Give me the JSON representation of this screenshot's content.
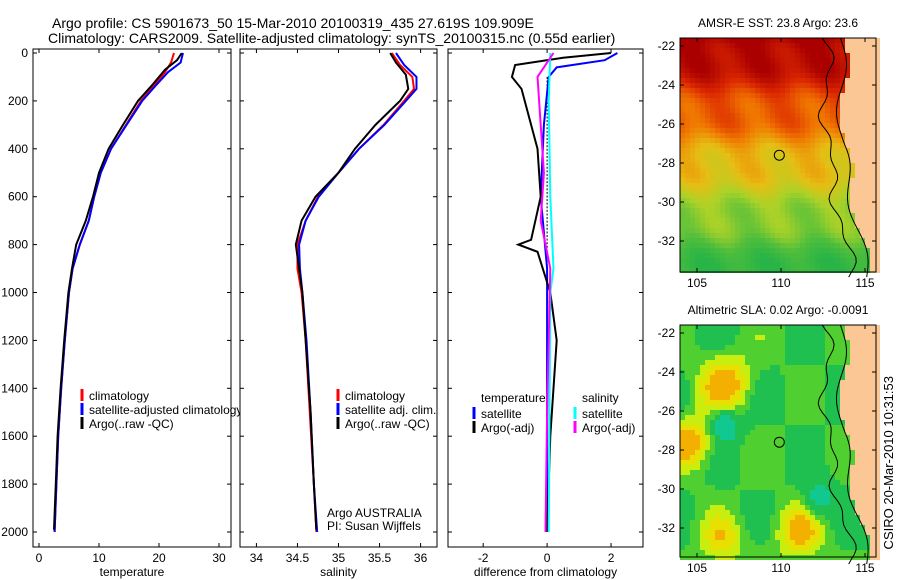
{
  "header": {
    "line1": "Argo profile: CS 5901673_50 15-Mar-2010 20100319_435 27.619S 109.909E",
    "line2": "Climatology: CARS2009. Satellite-adjusted climatology: synTS_20100315.nc (0.55d earlier)"
  },
  "credit": "CSIRO 20-Mar-2010 10:31:53",
  "colors": {
    "climatology": "#ff0000",
    "satellite": "#0000ff",
    "argo": "#000000",
    "sal_satellite": "#00ffff",
    "sal_argo": "#ff00ff",
    "land": "#fbc895"
  },
  "chart_data": [
    {
      "type": "line",
      "xlabel": "temperature",
      "ylabel": "",
      "xlim": [
        -1,
        32
      ],
      "ylim": [
        2000,
        0
      ],
      "xticks": [
        "0",
        "10",
        "20",
        "30"
      ],
      "xtick_values": [
        0,
        10,
        20,
        30
      ],
      "yticks": [
        "0",
        "200",
        "400",
        "600",
        "800",
        "1000",
        "1200",
        "1400",
        "1600",
        "1800",
        "2000"
      ],
      "legend": [
        "climatology",
        "satellite-adjusted climatology",
        "Argo(..raw -QC)"
      ],
      "series": [
        {
          "name": "climatology",
          "color": "#ff0000",
          "points": [
            [
              22.5,
              0
            ],
            [
              22,
              40
            ],
            [
              21,
              80
            ],
            [
              19,
              140
            ],
            [
              17,
              200
            ],
            [
              14.5,
              300
            ],
            [
              12,
              400
            ],
            [
              10.3,
              500
            ],
            [
              9.2,
              600
            ],
            [
              8.3,
              700
            ],
            [
              6.8,
              800
            ],
            [
              5.6,
              900
            ],
            [
              5.0,
              1000
            ],
            [
              4.3,
              1200
            ],
            [
              3.7,
              1400
            ],
            [
              3.2,
              1600
            ],
            [
              2.9,
              1800
            ],
            [
              2.6,
              2000
            ]
          ]
        },
        {
          "name": "satellite-adjusted climatology",
          "color": "#0000ff",
          "points": [
            [
              24,
              0
            ],
            [
              23.6,
              40
            ],
            [
              21.5,
              80
            ],
            [
              19.3,
              140
            ],
            [
              17.2,
              200
            ],
            [
              14.6,
              300
            ],
            [
              12,
              400
            ],
            [
              10.3,
              500
            ],
            [
              9.2,
              600
            ],
            [
              8.3,
              700
            ],
            [
              6.8,
              800
            ],
            [
              5.6,
              900
            ],
            [
              5.0,
              1000
            ],
            [
              4.3,
              1200
            ],
            [
              3.7,
              1400
            ],
            [
              3.2,
              1600
            ],
            [
              2.9,
              1800
            ],
            [
              2.6,
              2000
            ]
          ]
        },
        {
          "name": "Argo(..raw -QC)",
          "color": "#000000",
          "points": [
            [
              23.8,
              0
            ],
            [
              23,
              30
            ],
            [
              21,
              70
            ],
            [
              19,
              130
            ],
            [
              16.5,
              200
            ],
            [
              14,
              300
            ],
            [
              11.6,
              400
            ],
            [
              10,
              500
            ],
            [
              9,
              600
            ],
            [
              7.8,
              700
            ],
            [
              6.2,
              800
            ],
            [
              5.5,
              900
            ],
            [
              4.9,
              1000
            ],
            [
              4.2,
              1200
            ],
            [
              3.6,
              1400
            ],
            [
              3.1,
              1600
            ],
            [
              2.8,
              1800
            ],
            [
              2.5,
              1990
            ]
          ]
        }
      ],
      "annotation": []
    },
    {
      "type": "line",
      "xlabel": "salinity",
      "ylabel": "",
      "xlim": [
        33.8,
        36.2
      ],
      "ylim": [
        2000,
        0
      ],
      "xticks": [
        "34",
        "34.5",
        "35",
        "35.5",
        "36"
      ],
      "xtick_values": [
        34,
        34.5,
        35,
        35.5,
        36
      ],
      "legend": [
        "climatology",
        "satellite adj. clim.",
        "Argo(..raw -QC)"
      ],
      "series": [
        {
          "name": "climatology",
          "color": "#ff0000",
          "points": [
            [
              35.65,
              0
            ],
            [
              35.75,
              50
            ],
            [
              35.9,
              100
            ],
            [
              35.92,
              150
            ],
            [
              35.8,
              200
            ],
            [
              35.55,
              300
            ],
            [
              35.25,
              400
            ],
            [
              35.0,
              500
            ],
            [
              34.75,
              600
            ],
            [
              34.6,
              700
            ],
            [
              34.5,
              800
            ],
            [
              34.5,
              900
            ],
            [
              34.55,
              1000
            ],
            [
              34.6,
              1200
            ],
            [
              34.65,
              1500
            ],
            [
              34.7,
              1800
            ],
            [
              34.73,
              2000
            ]
          ]
        },
        {
          "name": "satellite adj. clim.",
          "color": "#0000ff",
          "points": [
            [
              35.7,
              0
            ],
            [
              35.8,
              50
            ],
            [
              35.95,
              100
            ],
            [
              35.95,
              150
            ],
            [
              35.82,
              200
            ],
            [
              35.56,
              300
            ],
            [
              35.25,
              400
            ],
            [
              35.0,
              500
            ],
            [
              34.76,
              600
            ],
            [
              34.6,
              700
            ],
            [
              34.52,
              800
            ],
            [
              34.53,
              900
            ],
            [
              34.56,
              1000
            ],
            [
              34.61,
              1200
            ],
            [
              34.66,
              1500
            ],
            [
              34.7,
              1800
            ],
            [
              34.74,
              2000
            ]
          ]
        },
        {
          "name": "Argo(..raw -QC)",
          "color": "#000000",
          "points": [
            [
              35.63,
              0
            ],
            [
              35.7,
              40
            ],
            [
              35.82,
              90
            ],
            [
              35.85,
              150
            ],
            [
              35.75,
              200
            ],
            [
              35.45,
              300
            ],
            [
              35.2,
              400
            ],
            [
              35.0,
              500
            ],
            [
              34.72,
              600
            ],
            [
              34.55,
              700
            ],
            [
              34.48,
              800
            ],
            [
              34.52,
              900
            ],
            [
              34.56,
              1000
            ],
            [
              34.6,
              1200
            ],
            [
              34.66,
              1500
            ],
            [
              34.7,
              1800
            ],
            [
              34.73,
              1990
            ]
          ]
        }
      ],
      "annotation": [
        "Argo AUSTRALIA",
        "PI: Susan Wijffels"
      ]
    },
    {
      "type": "line",
      "xlabel": "difference from climatology",
      "ylabel": "",
      "xlim": [
        -3.1,
        3.0
      ],
      "ylim": [
        2000,
        0
      ],
      "xticks": [
        "-2",
        "0",
        "2"
      ],
      "xtick_values": [
        -2,
        0,
        2
      ],
      "legend_headers": [
        "temperature",
        "salinity"
      ],
      "legend": [
        "satellite",
        "Argo(-adj)",
        "satellite",
        "Argo(-adj)"
      ],
      "series": [
        {
          "name": "temperature satellite",
          "color": "#0000ff",
          "points": [
            [
              2.2,
              0
            ],
            [
              1.8,
              30
            ],
            [
              0.3,
              60
            ],
            [
              0.05,
              100
            ],
            [
              -0.1,
              300
            ],
            [
              -0.2,
              600
            ],
            [
              0,
              900
            ],
            [
              0,
              2000
            ]
          ]
        },
        {
          "name": "temperature Argo(-adj)",
          "color": "#000000",
          "points": [
            [
              2.0,
              0
            ],
            [
              0.5,
              20
            ],
            [
              -1.0,
              50
            ],
            [
              -1.1,
              100
            ],
            [
              -0.8,
              150
            ],
            [
              -0.6,
              250
            ],
            [
              -0.3,
              400
            ],
            [
              -0.2,
              600
            ],
            [
              -0.5,
              780
            ],
            [
              -0.9,
              800
            ],
            [
              -0.3,
              830
            ],
            [
              0.1,
              1000
            ],
            [
              0.3,
              1200
            ],
            [
              0.2,
              1400
            ],
            [
              0.1,
              1600
            ],
            [
              0,
              2000
            ]
          ]
        },
        {
          "name": "salinity satellite",
          "color": "#00ffff",
          "points": [
            [
              0.1,
              0
            ],
            [
              0.05,
              200
            ],
            [
              0.1,
              600
            ],
            [
              0.2,
              900
            ],
            [
              0.1,
              1000
            ],
            [
              0.05,
              2000
            ]
          ]
        },
        {
          "name": "salinity Argo(-adj)",
          "color": "#ff00ff",
          "points": [
            [
              0.2,
              0
            ],
            [
              -0.3,
              100
            ],
            [
              -0.2,
              300
            ],
            [
              -0.1,
              500
            ],
            [
              -0.2,
              700
            ],
            [
              0.1,
              900
            ],
            [
              0,
              1500
            ],
            [
              -0.05,
              2000
            ]
          ]
        }
      ],
      "annotation": []
    }
  ],
  "maps": [
    {
      "title": "AMSR-E SST: 23.8 Argo: 23.6",
      "field": "sst",
      "lon_ticks": [
        "105",
        "110",
        "115"
      ],
      "lat_ticks": [
        "-22",
        "-24",
        "-26",
        "-28",
        "-30",
        "-32"
      ],
      "argo_lon": 109.9,
      "argo_lat": -27.6
    },
    {
      "title": "Altimetric SLA: 0.02 Argo: -0.0091",
      "field": "sla",
      "lon_ticks": [
        "105",
        "110",
        "115"
      ],
      "lat_ticks": [
        "-22",
        "-24",
        "-26",
        "-28",
        "-30",
        "-32"
      ],
      "argo_lon": 109.9,
      "argo_lat": -27.6
    }
  ]
}
